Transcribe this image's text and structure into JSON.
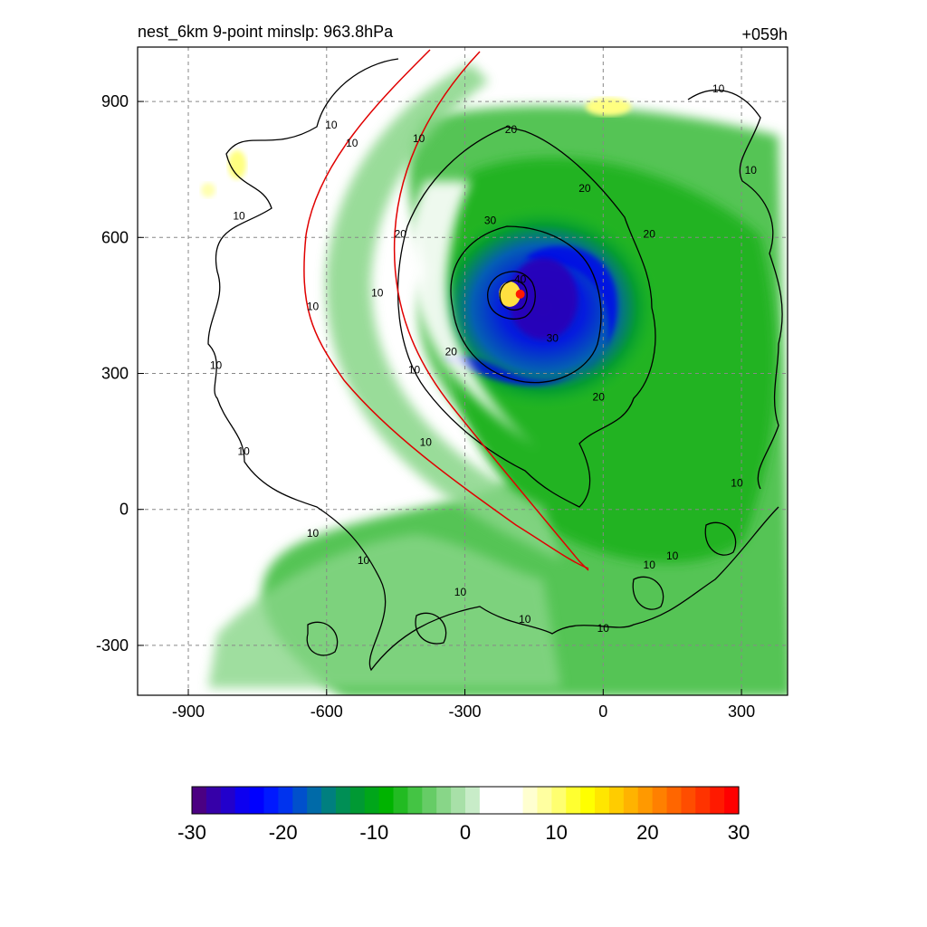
{
  "chart_data": {
    "type": "heatmap",
    "title_left": "nest_6km  9-point minslp: 963.8hPa",
    "title_right": "+059h",
    "xlim": [
      -1010,
      400
    ],
    "ylim": [
      -410,
      1020
    ],
    "x_ticks": [
      -900,
      -600,
      -300,
      0,
      300
    ],
    "y_ticks": [
      -300,
      0,
      300,
      600,
      900
    ],
    "grid": true,
    "colorbar": {
      "orientation": "horizontal",
      "range": [
        -30,
        30
      ],
      "ticks": [
        -30,
        -20,
        -10,
        0,
        10,
        20,
        30
      ],
      "colors": [
        "#4b0082",
        "#3600a8",
        "#2200cc",
        "#0d00f0",
        "#0000ff",
        "#0019ff",
        "#0033ee",
        "#0050cc",
        "#006aa8",
        "#007f7f",
        "#008f55",
        "#009933",
        "#00a61a",
        "#00b300",
        "#22bb22",
        "#44c444",
        "#66cc66",
        "#88d688",
        "#a8e0a8",
        "#c8ecc8",
        "#ffffff",
        "#ffffff",
        "#ffffff",
        "#ffffd0",
        "#ffffa0",
        "#ffff70",
        "#ffff30",
        "#ffff00",
        "#ffe600",
        "#ffcc00",
        "#ffb300",
        "#ff9900",
        "#ff8000",
        "#ff6600",
        "#ff4d00",
        "#ff3300",
        "#ff1a00",
        "#ff0000"
      ]
    },
    "contour_labels": [
      {
        "x": -590,
        "y": 840,
        "text": "10"
      },
      {
        "x": -545,
        "y": 800,
        "text": "10"
      },
      {
        "x": -400,
        "y": 810,
        "text": "10"
      },
      {
        "x": -200,
        "y": 830,
        "text": "20"
      },
      {
        "x": -40,
        "y": 700,
        "text": "20"
      },
      {
        "x": -245,
        "y": 630,
        "text": "30"
      },
      {
        "x": -440,
        "y": 600,
        "text": "20"
      },
      {
        "x": -790,
        "y": 640,
        "text": "10"
      },
      {
        "x": -630,
        "y": 440,
        "text": "10"
      },
      {
        "x": -490,
        "y": 470,
        "text": "10"
      },
      {
        "x": 100,
        "y": 600,
        "text": "20"
      },
      {
        "x": 250,
        "y": 920,
        "text": "10"
      },
      {
        "x": 320,
        "y": 740,
        "text": "10"
      },
      {
        "x": -180,
        "y": 500,
        "text": "40"
      },
      {
        "x": -110,
        "y": 370,
        "text": "30"
      },
      {
        "x": -330,
        "y": 340,
        "text": "20"
      },
      {
        "x": -410,
        "y": 300,
        "text": "10"
      },
      {
        "x": -10,
        "y": 240,
        "text": "20"
      },
      {
        "x": -840,
        "y": 310,
        "text": "10"
      },
      {
        "x": -780,
        "y": 120,
        "text": "10"
      },
      {
        "x": -385,
        "y": 140,
        "text": "10"
      },
      {
        "x": -630,
        "y": -60,
        "text": "10"
      },
      {
        "x": -520,
        "y": -120,
        "text": "10"
      },
      {
        "x": -310,
        "y": -190,
        "text": "10"
      },
      {
        "x": -170,
        "y": -250,
        "text": "10"
      },
      {
        "x": 0,
        "y": -270,
        "text": "10"
      },
      {
        "x": 100,
        "y": -130,
        "text": "10"
      },
      {
        "x": 150,
        "y": -110,
        "text": "10"
      },
      {
        "x": 290,
        "y": 50,
        "text": "10"
      }
    ],
    "storm_center": {
      "x": -180,
      "y": 475
    }
  }
}
